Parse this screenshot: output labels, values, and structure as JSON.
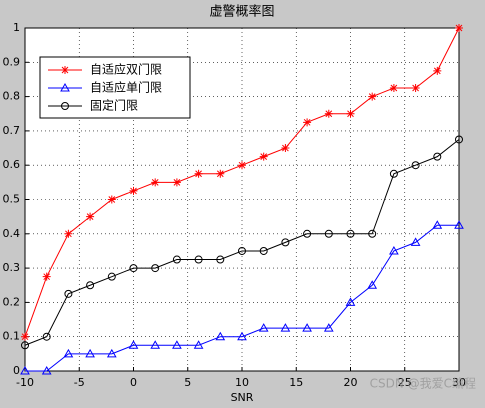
{
  "chart_data": {
    "type": "line",
    "title": "虚警概率图",
    "x_label": "SNR",
    "x": [
      -10,
      -8,
      -6,
      -4,
      -2,
      0,
      2,
      4,
      6,
      8,
      10,
      12,
      14,
      16,
      18,
      20,
      22,
      24,
      26,
      28,
      30
    ],
    "series": [
      {
        "name": "自适应双门限",
        "color": "#ff0000",
        "marker": "star",
        "values": [
          0.1,
          0.275,
          0.4,
          0.45,
          0.5,
          0.525,
          0.55,
          0.55,
          0.575,
          0.575,
          0.6,
          0.625,
          0.65,
          0.725,
          0.75,
          0.75,
          0.8,
          0.825,
          0.825,
          0.875,
          1.0
        ]
      },
      {
        "name": "自适应单门限",
        "color": "#0000ff",
        "marker": "triangle",
        "values": [
          0,
          0,
          0.05,
          0.05,
          0.05,
          0.075,
          0.075,
          0.075,
          0.075,
          0.1,
          0.1,
          0.125,
          0.125,
          0.125,
          0.125,
          0.2,
          0.25,
          0.35,
          0.375,
          0.425,
          0.425
        ]
      },
      {
        "name": "固定门限",
        "color": "#000000",
        "marker": "circle",
        "values": [
          0.075,
          0.1,
          0.225,
          0.25,
          0.275,
          0.3,
          0.3,
          0.325,
          0.325,
          0.325,
          0.35,
          0.35,
          0.375,
          0.4,
          0.4,
          0.4,
          0.4,
          0.575,
          0.6,
          0.625,
          0.675
        ]
      }
    ],
    "xlim": [
      -10,
      30
    ],
    "xticks": [
      -10,
      -5,
      0,
      5,
      10,
      15,
      20,
      25,
      30
    ],
    "ylim": [
      0,
      1
    ],
    "yticks": [
      0,
      0.1,
      0.2,
      0.3,
      0.4,
      0.5,
      0.6,
      0.7,
      0.8,
      0.9,
      1
    ],
    "grid": true,
    "legend": "upper left",
    "watermark": "CSDN @我爱C编程"
  }
}
